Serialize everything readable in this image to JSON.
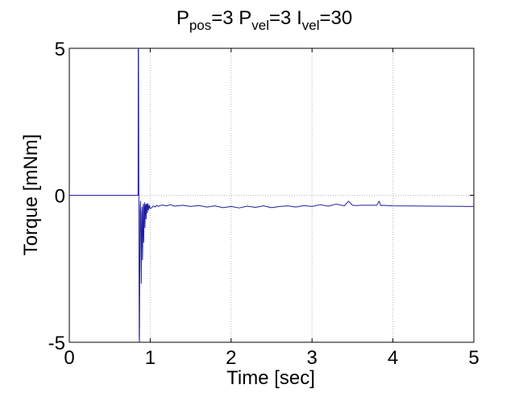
{
  "chart_data": {
    "type": "line",
    "title": {
      "parts": [
        {
          "text": "P",
          "sub": false
        },
        {
          "text": "pos",
          "sub": true
        },
        {
          "text": "=3 P",
          "sub": false
        },
        {
          "text": "vel",
          "sub": true
        },
        {
          "text": "=3 I",
          "sub": false
        },
        {
          "text": "vel",
          "sub": true
        },
        {
          "text": "=30",
          "sub": false
        }
      ]
    },
    "xlabel": "Time [sec]",
    "ylabel": "Torque [mNm]",
    "xlim": [
      0,
      5
    ],
    "ylim": [
      -5,
      5
    ],
    "xticks": [
      0,
      1,
      2,
      3,
      4,
      5
    ],
    "yticks": [
      -5,
      0,
      5
    ],
    "xtick_labels": [
      "0",
      "1",
      "2",
      "3",
      "4",
      "5"
    ],
    "ytick_labels": [
      "-5",
      "0",
      "5"
    ],
    "grid": true,
    "line_color": "#1f1fa0",
    "series": [
      {
        "x": [
          0.0,
          0.85,
          0.852,
          0.855,
          0.858,
          0.861,
          0.864,
          0.867,
          0.87,
          0.875,
          0.88,
          0.885,
          0.89,
          0.895,
          0.9,
          0.905,
          0.91,
          0.915,
          0.92,
          0.925,
          0.93,
          0.935,
          0.94,
          0.945,
          0.95,
          0.955,
          0.96,
          0.965,
          0.97,
          0.975,
          0.98,
          0.99,
          1.0,
          1.02,
          1.04,
          1.06,
          1.08,
          1.1,
          1.12,
          1.15,
          1.2,
          1.25,
          1.3,
          1.4,
          1.5,
          1.6,
          1.7,
          1.8,
          1.9,
          2.0,
          2.1,
          2.2,
          2.3,
          2.4,
          2.5,
          2.6,
          2.7,
          2.8,
          2.9,
          3.0,
          3.1,
          3.2,
          3.3,
          3.4,
          3.45,
          3.5,
          3.55,
          3.6,
          3.8,
          3.83,
          3.85,
          3.87,
          4.0,
          4.5,
          5.0
        ],
        "y": [
          0.0,
          0.0,
          5.0,
          5.0,
          2.0,
          -2.0,
          -4.8,
          -5.0,
          -3.0,
          -0.5,
          -0.2,
          -1.5,
          -3.0,
          -0.6,
          -0.4,
          -2.2,
          -1.2,
          -0.3,
          -1.6,
          -0.5,
          -0.25,
          -1.1,
          -0.4,
          -0.3,
          -0.8,
          -0.35,
          -0.28,
          -0.6,
          -0.33,
          -0.3,
          -0.5,
          -0.35,
          -0.45,
          -0.42,
          -0.36,
          -0.4,
          -0.34,
          -0.38,
          -0.35,
          -0.33,
          -0.36,
          -0.32,
          -0.37,
          -0.34,
          -0.38,
          -0.35,
          -0.4,
          -0.36,
          -0.42,
          -0.38,
          -0.43,
          -0.37,
          -0.41,
          -0.36,
          -0.42,
          -0.38,
          -0.36,
          -0.4,
          -0.35,
          -0.38,
          -0.32,
          -0.37,
          -0.3,
          -0.36,
          -0.2,
          -0.34,
          -0.35,
          -0.34,
          -0.34,
          -0.2,
          -0.35,
          -0.34,
          -0.36,
          -0.37,
          -0.38
        ]
      }
    ]
  }
}
